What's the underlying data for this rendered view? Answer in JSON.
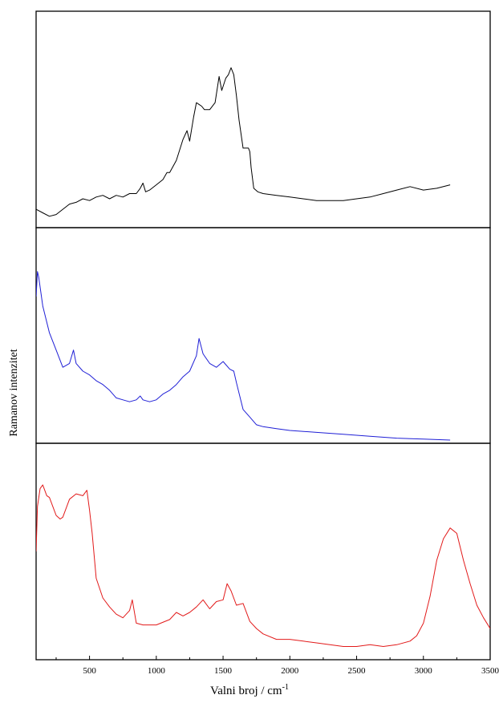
{
  "chart_data": {
    "type": "line",
    "xlabel": "Valni broj / cm",
    "xlabel_superscript": "-1",
    "ylabel": "Ramanov intenzitet",
    "xlim": [
      100,
      3500
    ],
    "x_ticks": [
      500,
      1000,
      1500,
      2000,
      2500,
      3000,
      3500
    ],
    "y_ticks_shown": false,
    "panels": [
      {
        "color": "#000000",
        "ylim": [
          0,
          1
        ],
        "series": [
          {
            "x": [
              100,
              150,
              200,
              250,
              300,
              350,
              400,
              450,
              500,
              550,
              600,
              650,
              700,
              750,
              800,
              850,
              880,
              900,
              920,
              950,
              1000,
              1050,
              1080,
              1100,
              1150,
              1200,
              1230,
              1250,
              1280,
              1300,
              1320,
              1340,
              1360,
              1400,
              1440,
              1470,
              1490,
              1520,
              1540,
              1560,
              1580,
              1600,
              1620,
              1650,
              1690,
              1700,
              1710,
              1730,
              1760,
              1800,
              1900,
              2000,
              2100,
              2200,
              2300,
              2400,
              2500,
              2600,
              2700,
              2800,
              2900,
              3000,
              3100,
              3200
            ],
            "y": [
              0.05,
              0.03,
              0.01,
              0.02,
              0.05,
              0.08,
              0.09,
              0.11,
              0.1,
              0.12,
              0.13,
              0.11,
              0.13,
              0.12,
              0.14,
              0.14,
              0.17,
              0.2,
              0.15,
              0.16,
              0.19,
              0.22,
              0.26,
              0.26,
              0.33,
              0.45,
              0.5,
              0.44,
              0.58,
              0.66,
              0.65,
              0.64,
              0.62,
              0.62,
              0.66,
              0.81,
              0.73,
              0.8,
              0.82,
              0.86,
              0.82,
              0.7,
              0.56,
              0.4,
              0.4,
              0.38,
              0.29,
              0.17,
              0.15,
              0.14,
              0.13,
              0.12,
              0.11,
              0.1,
              0.1,
              0.1,
              0.11,
              0.12,
              0.14,
              0.16,
              0.18,
              0.16,
              0.17,
              0.19
            ]
          }
        ]
      },
      {
        "color": "#1f1fd6",
        "ylim": [
          0,
          1
        ],
        "series": [
          {
            "x": [
              100,
              110,
              120,
              150,
              200,
              250,
              300,
              350,
              380,
              400,
              450,
              500,
              550,
              600,
              650,
              700,
              750,
              800,
              850,
              880,
              900,
              950,
              1000,
              1050,
              1100,
              1150,
              1200,
              1250,
              1300,
              1320,
              1350,
              1400,
              1450,
              1500,
              1550,
              1580,
              1600,
              1650,
              1700,
              1750,
              1800,
              1900,
              2000,
              2200,
              2400,
              2600,
              2800,
              3000,
              3200
            ],
            "y": [
              0.75,
              0.88,
              0.85,
              0.7,
              0.56,
              0.47,
              0.38,
              0.4,
              0.47,
              0.4,
              0.36,
              0.34,
              0.31,
              0.29,
              0.26,
              0.22,
              0.21,
              0.2,
              0.21,
              0.23,
              0.21,
              0.2,
              0.21,
              0.24,
              0.26,
              0.29,
              0.33,
              0.36,
              0.44,
              0.53,
              0.45,
              0.4,
              0.38,
              0.41,
              0.37,
              0.36,
              0.3,
              0.16,
              0.12,
              0.08,
              0.07,
              0.06,
              0.05,
              0.04,
              0.03,
              0.02,
              0.01,
              0.005,
              0.0
            ]
          }
        ]
      },
      {
        "color": "#e21a1a",
        "ylim": [
          0,
          1
        ],
        "series": [
          {
            "x": [
              100,
              110,
              130,
              150,
              180,
              200,
              250,
              280,
              300,
              350,
              400,
              450,
              480,
              500,
              520,
              550,
              600,
              650,
              700,
              750,
              800,
              820,
              850,
              900,
              950,
              1000,
              1100,
              1150,
              1200,
              1250,
              1300,
              1350,
              1400,
              1450,
              1500,
              1530,
              1560,
              1600,
              1650,
              1700,
              1750,
              1800,
              1900,
              2000,
              2100,
              2200,
              2300,
              2400,
              2500,
              2600,
              2700,
              2800,
              2900,
              2950,
              3000,
              3050,
              3100,
              3150,
              3200,
              3250,
              3300,
              3350,
              3400,
              3450,
              3500
            ],
            "y": [
              0.55,
              0.8,
              0.9,
              0.92,
              0.86,
              0.85,
              0.75,
              0.73,
              0.74,
              0.84,
              0.87,
              0.86,
              0.89,
              0.78,
              0.65,
              0.4,
              0.29,
              0.24,
              0.2,
              0.18,
              0.22,
              0.28,
              0.15,
              0.14,
              0.14,
              0.14,
              0.17,
              0.21,
              0.19,
              0.21,
              0.24,
              0.28,
              0.23,
              0.27,
              0.28,
              0.37,
              0.33,
              0.25,
              0.26,
              0.16,
              0.12,
              0.09,
              0.06,
              0.06,
              0.05,
              0.04,
              0.03,
              0.02,
              0.02,
              0.03,
              0.02,
              0.03,
              0.05,
              0.08,
              0.15,
              0.3,
              0.5,
              0.62,
              0.68,
              0.65,
              0.5,
              0.37,
              0.25,
              0.18,
              0.12
            ]
          }
        ]
      }
    ]
  }
}
